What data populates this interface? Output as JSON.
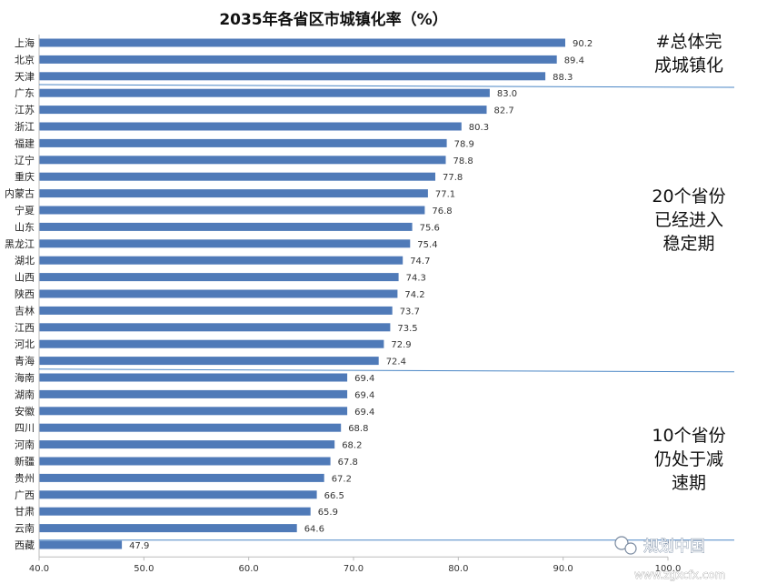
{
  "chart_data": {
    "type": "bar",
    "orientation": "horizontal",
    "title": "2035年各省区市城镇化率（%）",
    "categories": [
      "上海",
      "北京",
      "天津",
      "广东",
      "江苏",
      "浙江",
      "福建",
      "辽宁",
      "重庆",
      "内蒙古",
      "宁夏",
      "山东",
      "黑龙江",
      "湖北",
      "山西",
      "陕西",
      "吉林",
      "江西",
      "河北",
      "青海",
      "海南",
      "湖南",
      "安徽",
      "四川",
      "河南",
      "新疆",
      "贵州",
      "广西",
      "甘肃",
      "云南",
      "西藏"
    ],
    "values": [
      90.2,
      89.4,
      88.3,
      83.0,
      82.7,
      80.3,
      78.9,
      78.8,
      77.8,
      77.1,
      76.8,
      75.6,
      75.4,
      74.7,
      74.3,
      74.2,
      73.7,
      73.5,
      72.9,
      72.4,
      69.4,
      69.4,
      69.4,
      68.8,
      68.2,
      67.8,
      67.2,
      66.5,
      65.9,
      64.6,
      47.9
    ],
    "value_labels": [
      "90.2",
      "89.4",
      "88.3",
      "83.0",
      "82.7",
      "80.3",
      "78.9",
      "78.8",
      "77.8",
      "77.1",
      "76.8",
      "75.6",
      "75.4",
      "74.7",
      "74.3",
      "74.2",
      "73.7",
      "73.5",
      "72.9",
      "72.4",
      "69.4",
      "69.4",
      "69.4",
      "68.8",
      "68.2",
      "67.8",
      "67.2",
      "66.5",
      "65.9",
      "64.6",
      "47.9"
    ],
    "xlim": [
      40,
      100
    ],
    "xticks": [
      "40.0",
      "50.0",
      "60.0",
      "70.0",
      "80.0",
      "90.0",
      "100.0"
    ],
    "grid": false,
    "bar_color": "#4f7ab8",
    "separator_color": "#4a86c5",
    "annotations": [
      {
        "lines": [
          "#总体完",
          "成城镇化"
        ]
      },
      {
        "lines": [
          "20个省份",
          "已经进入",
          "稳定期"
        ]
      },
      {
        "lines": [
          "10个省份",
          "仍处于减",
          "速期"
        ]
      }
    ]
  },
  "watermark": {
    "text": "规划中国",
    "url": "www.zgxcfx.com"
  }
}
